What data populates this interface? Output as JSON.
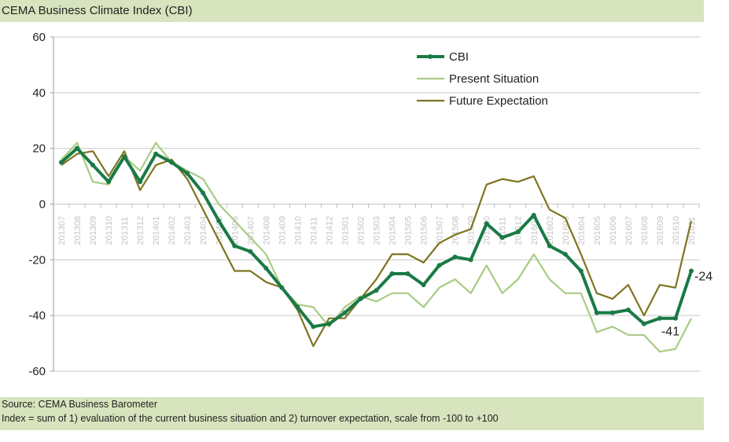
{
  "title": "CEMA Business Climate Index (CBI)",
  "footer": {
    "source": "Source: CEMA Business Barometer",
    "note": "Index = sum of 1) evaluation of the current business situation and 2) turnover expectation, scale from -100 to +100"
  },
  "chart_data": {
    "type": "line",
    "title": "CEMA Business Climate Index (CBI)",
    "xlabel": "",
    "ylabel": "",
    "ylim": [
      -60,
      60
    ],
    "yticks": [
      60,
      40,
      20,
      0,
      -20,
      -40,
      -60
    ],
    "grid": true,
    "legend_position": "top-right",
    "categories": [
      "201307",
      "201308",
      "201309",
      "201310",
      "201311",
      "201312",
      "201401",
      "201402",
      "201403",
      "201404",
      "201405",
      "201406",
      "201407",
      "201408",
      "201409",
      "201410",
      "201411",
      "201412",
      "201501",
      "201502",
      "201503",
      "201504",
      "201505",
      "201506",
      "201507",
      "201508",
      "201509",
      "201510",
      "201511",
      "201512",
      "201601",
      "201602",
      "201603",
      "201604",
      "201605",
      "201606",
      "201607",
      "201608",
      "201609",
      "201610",
      "201611"
    ],
    "series": [
      {
        "name": "CBI",
        "color": "#1a7a45",
        "values": [
          15,
          20,
          14,
          8,
          17,
          8,
          18,
          15,
          11,
          4,
          -6,
          -15,
          -17,
          -23,
          -30,
          -37,
          -44,
          -43,
          -39,
          -34,
          -31,
          -25,
          -25,
          -29,
          -22,
          -19,
          -20,
          -7,
          -12,
          -10,
          -4,
          -15,
          -18,
          -24,
          -39,
          -39,
          -38,
          -43,
          -41,
          -41,
          -24
        ]
      },
      {
        "name": "Present Situation",
        "color": "#a8cc84",
        "values": [
          16,
          22,
          8,
          7,
          17,
          12,
          22,
          15,
          12,
          9,
          0,
          -6,
          -12,
          -18,
          -30,
          -36,
          -37,
          -44,
          -37,
          -33,
          -35,
          -32,
          -32,
          -37,
          -30,
          -27,
          -32,
          -22,
          -32,
          -27,
          -18,
          -27,
          -32,
          -32,
          -46,
          -44,
          -47,
          -47,
          -53,
          -52,
          -41
        ]
      },
      {
        "name": "Future Expectation",
        "color": "#7f7420",
        "values": [
          14,
          18,
          19,
          10,
          19,
          5,
          14,
          16,
          9,
          -2,
          -13,
          -24,
          -24,
          -28,
          -30,
          -38,
          -51,
          -41,
          -41,
          -34,
          -27,
          -18,
          -18,
          -21,
          -14,
          -11,
          -9,
          7,
          9,
          8,
          10,
          -2,
          -5,
          -18,
          -32,
          -34,
          -29,
          -40,
          -29,
          -30,
          -6
        ]
      }
    ],
    "annotations": [
      {
        "category": "201611",
        "series": "CBI",
        "text": "-24"
      },
      {
        "category": "201610",
        "series": "CBI",
        "text": "-41"
      }
    ]
  }
}
